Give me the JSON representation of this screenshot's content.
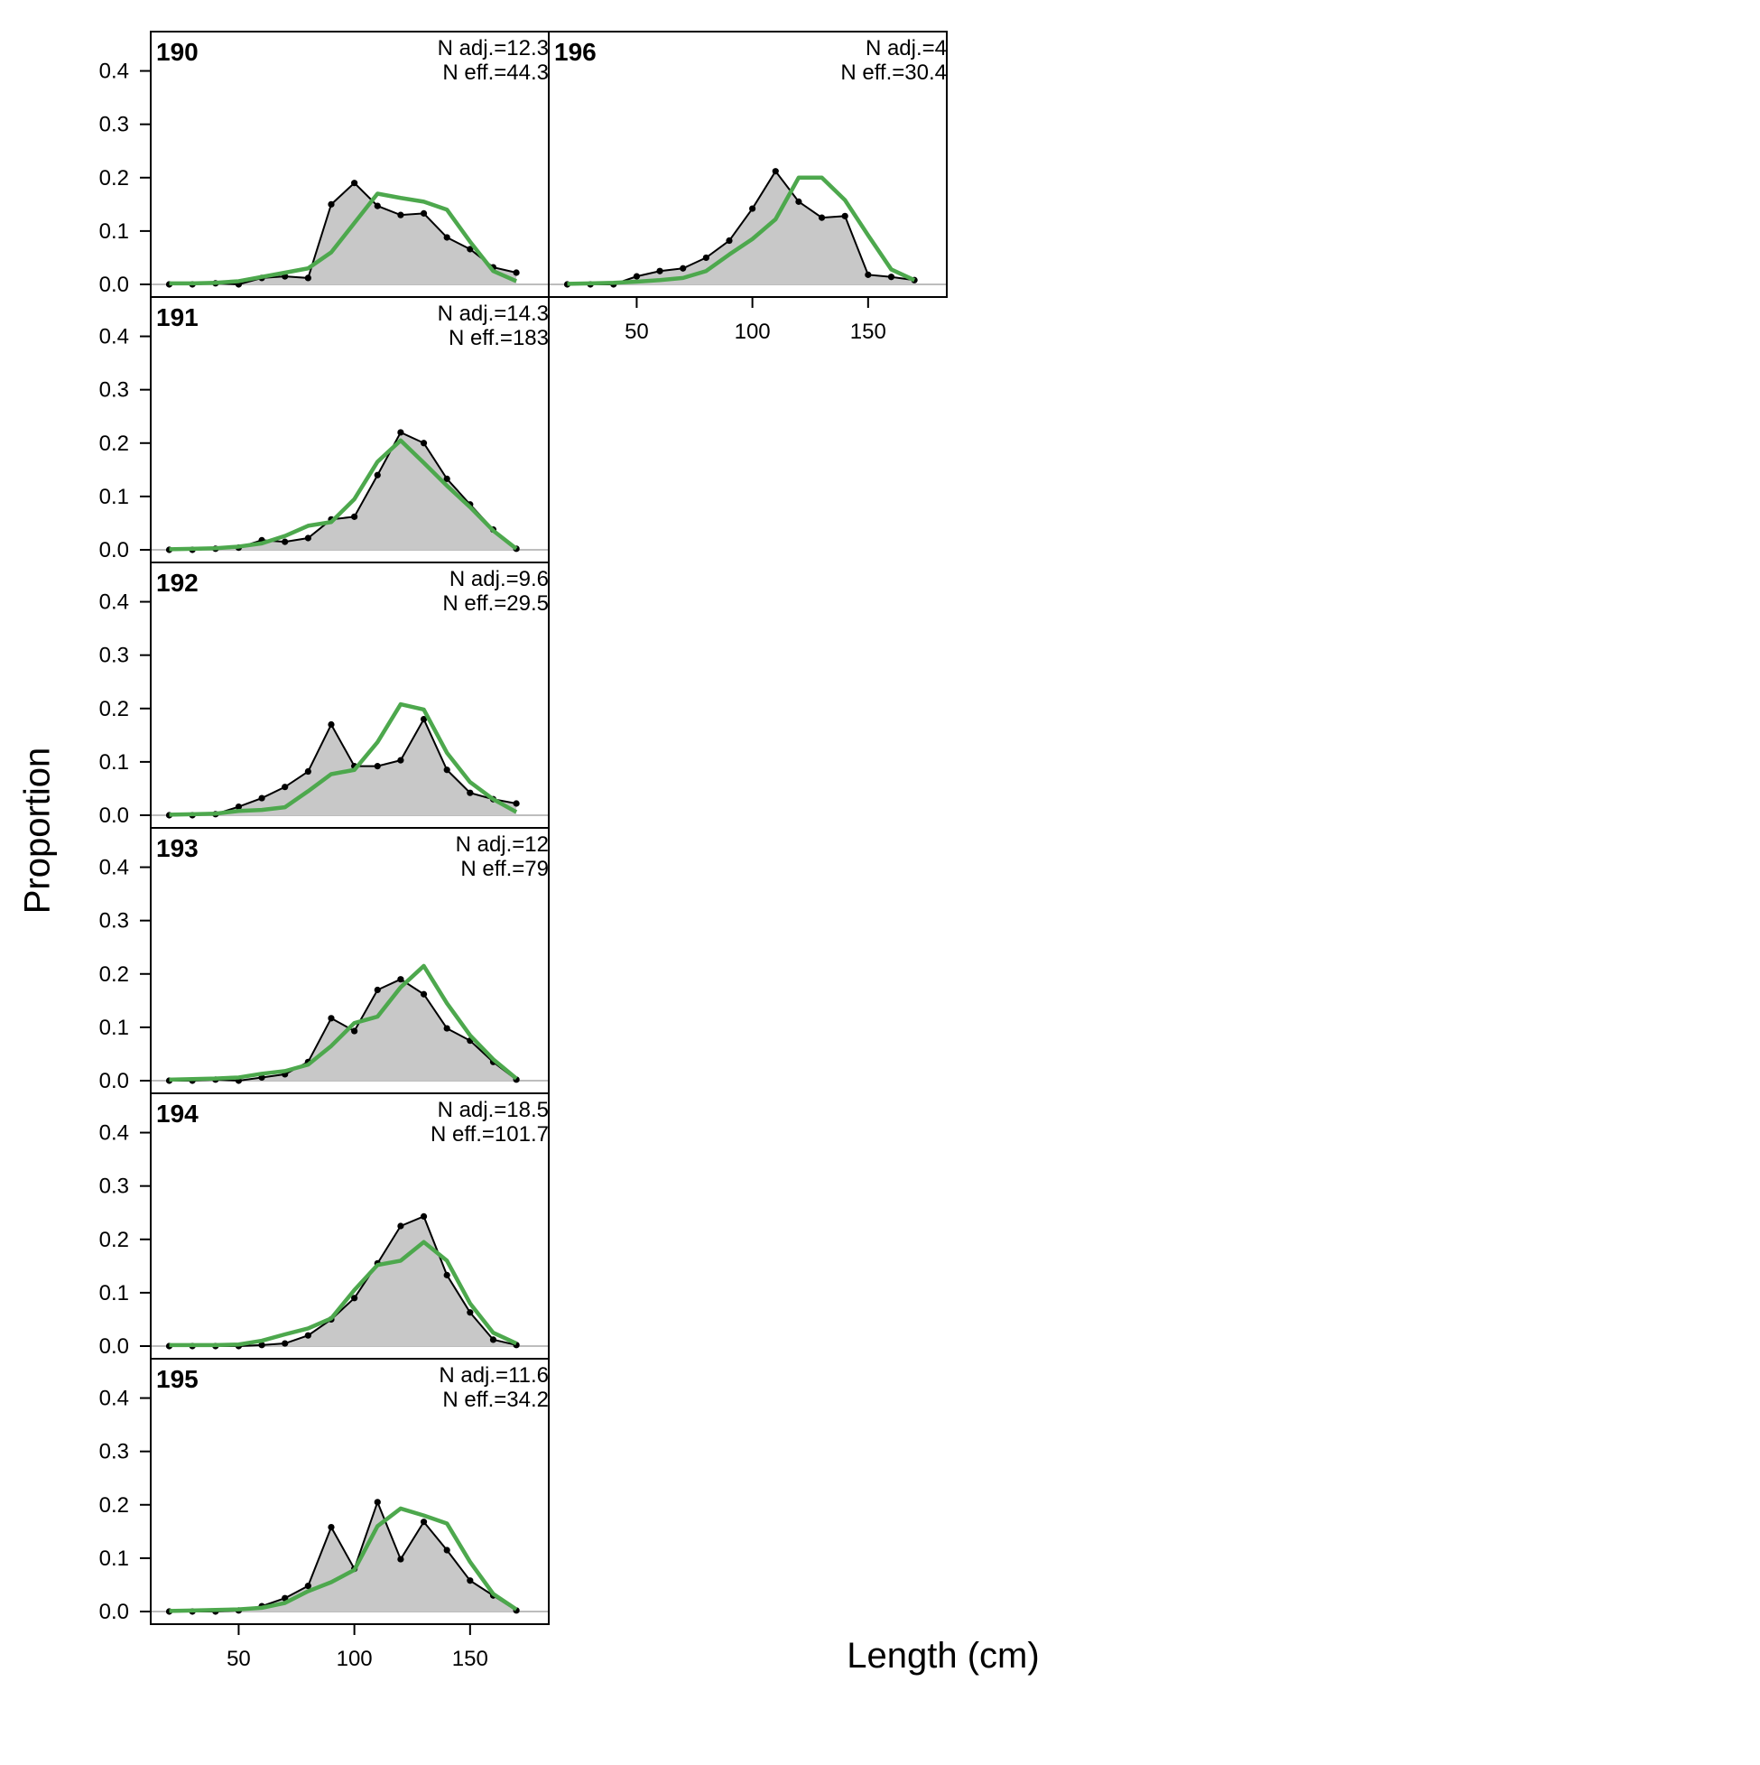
{
  "xlabel": "Length (cm)",
  "ylabel": "Proportion",
  "chart_data": {
    "type": "line",
    "x_unit": "cm",
    "xlim": [
      12,
      184
    ],
    "ylim": [
      0,
      0.45
    ],
    "x_ticks": [
      50,
      100,
      150
    ],
    "y_ticks": [
      0.0,
      0.1,
      0.2,
      0.3,
      0.4
    ],
    "x_tick_labels": [
      "50",
      "100",
      "150"
    ],
    "y_tick_labels": [
      "0.0",
      "0.1",
      "0.2",
      "0.3",
      "0.4"
    ],
    "x": [
      20,
      30,
      40,
      50,
      60,
      70,
      80,
      90,
      100,
      110,
      120,
      130,
      140,
      150,
      160,
      170
    ],
    "series_style": {
      "observed": "#000000",
      "observed_fill": "#c8c8c8",
      "expected": "#4da84d"
    },
    "panels": [
      {
        "label": "190",
        "n_adj": "N adj.=12.3",
        "n_eff": "N eff.=44.3",
        "observed": [
          0,
          0,
          0.002,
          0,
          0.012,
          0.015,
          0.012,
          0.15,
          0.19,
          0.147,
          0.13,
          0.133,
          0.088,
          0.066,
          0.032,
          0.022
        ],
        "expected": [
          0.002,
          0.002,
          0.003,
          0.006,
          0.014,
          0.022,
          0.03,
          0.06,
          0.115,
          0.17,
          0.162,
          0.155,
          0.14,
          0.08,
          0.025,
          0.006
        ]
      },
      {
        "label": "191",
        "n_adj": "N adj.=14.3",
        "n_eff": "N eff.=183",
        "observed": [
          0,
          0,
          0.002,
          0.004,
          0.018,
          0.015,
          0.022,
          0.057,
          0.062,
          0.14,
          0.22,
          0.2,
          0.133,
          0.085,
          0.038,
          0.002
        ],
        "expected": [
          0.001,
          0.002,
          0.003,
          0.006,
          0.012,
          0.026,
          0.045,
          0.052,
          0.095,
          0.165,
          0.205,
          0.163,
          0.12,
          0.08,
          0.036,
          0.002
        ]
      },
      {
        "label": "192",
        "n_adj": "N adj.=9.6",
        "n_eff": "N eff.=29.5",
        "observed": [
          0,
          0,
          0.002,
          0.016,
          0.032,
          0.053,
          0.082,
          0.17,
          0.092,
          0.092,
          0.103,
          0.18,
          0.085,
          0.042,
          0.03,
          0.022
        ],
        "expected": [
          0.001,
          0.002,
          0.003,
          0.008,
          0.01,
          0.015,
          0.045,
          0.077,
          0.085,
          0.137,
          0.208,
          0.198,
          0.117,
          0.062,
          0.03,
          0.006
        ]
      },
      {
        "label": "193",
        "n_adj": "N adj.=12",
        "n_eff": "N eff.=79",
        "observed": [
          0,
          0,
          0.002,
          0,
          0.006,
          0.012,
          0.035,
          0.117,
          0.093,
          0.17,
          0.19,
          0.162,
          0.098,
          0.075,
          0.035,
          0.002
        ],
        "expected": [
          0.002,
          0.003,
          0.004,
          0.006,
          0.013,
          0.018,
          0.03,
          0.065,
          0.108,
          0.12,
          0.175,
          0.215,
          0.145,
          0.085,
          0.04,
          0.004
        ]
      },
      {
        "label": "194",
        "n_adj": "N adj.=18.5",
        "n_eff": "N eff.=101.7",
        "observed": [
          0,
          0,
          0,
          0,
          0.002,
          0.005,
          0.02,
          0.05,
          0.09,
          0.155,
          0.225,
          0.243,
          0.133,
          0.063,
          0.012,
          0.002
        ],
        "expected": [
          0.002,
          0.002,
          0.002,
          0.003,
          0.01,
          0.022,
          0.033,
          0.052,
          0.105,
          0.152,
          0.16,
          0.195,
          0.16,
          0.08,
          0.025,
          0.005
        ]
      },
      {
        "label": "195",
        "n_adj": "N adj.=11.6",
        "n_eff": "N eff.=34.2",
        "observed": [
          0,
          0,
          0,
          0.002,
          0.01,
          0.025,
          0.048,
          0.158,
          0.08,
          0.205,
          0.098,
          0.168,
          0.115,
          0.058,
          0.03,
          0.002
        ],
        "expected": [
          0.001,
          0.002,
          0.003,
          0.004,
          0.007,
          0.016,
          0.038,
          0.055,
          0.078,
          0.16,
          0.193,
          0.18,
          0.165,
          0.093,
          0.033,
          0.004
        ]
      },
      {
        "label": "196",
        "n_adj": "N adj.=4",
        "n_eff": "N eff.=30.4",
        "observed": [
          0,
          0,
          0,
          0.015,
          0.025,
          0.03,
          0.05,
          0.082,
          0.142,
          0.212,
          0.155,
          0.125,
          0.128,
          0.018,
          0.014,
          0.008
        ],
        "expected": [
          0.001,
          0.002,
          0.003,
          0.005,
          0.008,
          0.012,
          0.025,
          0.056,
          0.085,
          0.122,
          0.2,
          0.2,
          0.158,
          0.092,
          0.028,
          0.008
        ]
      }
    ]
  }
}
